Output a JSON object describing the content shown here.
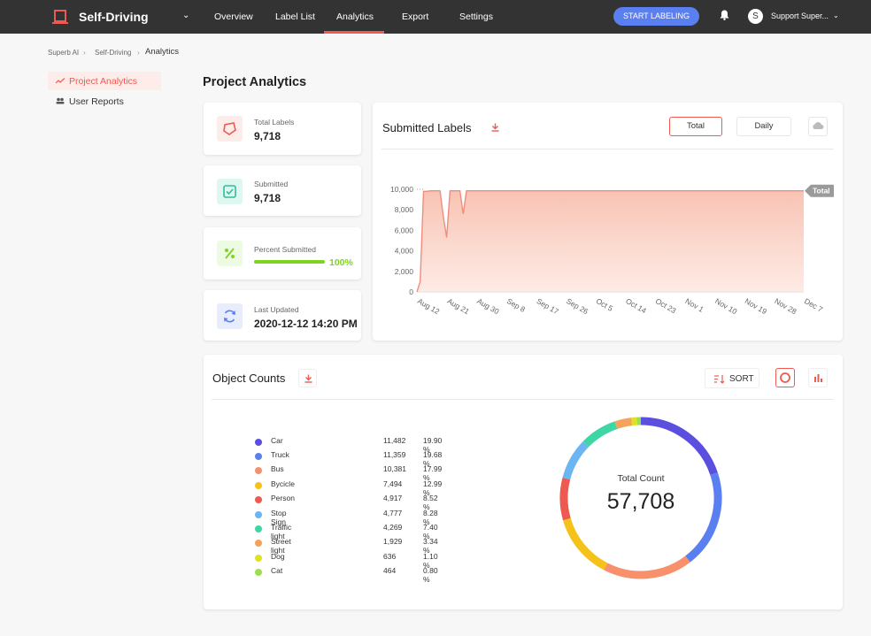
{
  "nav": {
    "project_name": "Self-Driving",
    "items": [
      "Overview",
      "Label List",
      "Analytics",
      "Export",
      "Settings"
    ],
    "start_button": "START LABELING",
    "avatar_letter": "S",
    "user_name": "Support Super..."
  },
  "breadcrumb": [
    "Superb AI",
    "Self-Driving",
    "Analytics"
  ],
  "sidebar": {
    "items": [
      "Project Analytics",
      "User Reports"
    ]
  },
  "page_title": "Project Analytics",
  "stats": [
    {
      "label": "Total Labels",
      "value": "9,718"
    },
    {
      "label": "Submitted",
      "value": "9,718"
    },
    {
      "label": "Percent Submitted",
      "value": "100%",
      "progress": 1.0
    },
    {
      "label": "Last Updated",
      "value": "2020-12-12 14:20 PM"
    }
  ],
  "submitted_labels": {
    "title": "Submitted Labels",
    "toggle": [
      "Total",
      "Daily"
    ],
    "series_tag": "Total"
  },
  "object_counts": {
    "title": "Object Counts",
    "sort_label": "SORT",
    "total_title": "Total Count",
    "total_value": "57,708",
    "rows": [
      {
        "name": "Car",
        "count": "11,482",
        "pct": "19.90 %",
        "color": "#5b4fe0"
      },
      {
        "name": "Truck",
        "count": "11,359",
        "pct": "19.68 %",
        "color": "#5a7ff0"
      },
      {
        "name": "Bus",
        "count": "10,381",
        "pct": "17.99 %",
        "color": "#f7906b"
      },
      {
        "name": "Bycicle",
        "count": "7,494",
        "pct": "12.99 %",
        "color": "#f5c21b"
      },
      {
        "name": "Person",
        "count": "4,917",
        "pct": "8.52 %",
        "color": "#ee5a4f"
      },
      {
        "name": "Stop Sign",
        "count": "4,777",
        "pct": "8.28 %",
        "color": "#6bb5f2"
      },
      {
        "name": "Traffic light",
        "count": "4,269",
        "pct": "7.40 %",
        "color": "#3ed6a4"
      },
      {
        "name": "Street light",
        "count": "1,929",
        "pct": "3.34 %",
        "color": "#f5a25a"
      },
      {
        "name": "Dog",
        "count": "636",
        "pct": "1.10 %",
        "color": "#dde324"
      },
      {
        "name": "Cat",
        "count": "464",
        "pct": "0.80 %",
        "color": "#9be04a"
      }
    ]
  },
  "chart_data": [
    {
      "type": "area",
      "title": "Submitted Labels",
      "series": [
        {
          "name": "Total"
        }
      ],
      "x_ticks": [
        "Aug 12",
        "Aug 21",
        "Aug 30",
        "Sep 8",
        "Sep 17",
        "Sep 26",
        "Oct 5",
        "Oct 14",
        "Oct 23",
        "Nov 1",
        "Nov 10",
        "Nov 19",
        "Nov 28",
        "Dec 7"
      ],
      "y_ticks": [
        "0",
        "2,000",
        "4,000",
        "6,000",
        "8,000",
        "10,000"
      ],
      "ylim": [
        0,
        10000
      ],
      "x": [
        "Aug 12",
        "Aug 13",
        "Aug 14",
        "Aug 15",
        "Aug 16",
        "Aug 18",
        "Aug 19",
        "Aug 20",
        "Aug 21",
        "Aug 22",
        "Aug 24",
        "Aug 25",
        "Aug 26",
        "Aug 27",
        "Aug 28",
        "Sep 8",
        "Dec 7"
      ],
      "y": [
        0,
        1000,
        9800,
        9800,
        9850,
        9850,
        9850,
        7300,
        5300,
        9850,
        9850,
        9850,
        7600,
        9850,
        9850,
        9850,
        9850
      ]
    },
    {
      "type": "pie",
      "title": "Total Count",
      "categories": [
        "Car",
        "Truck",
        "Bus",
        "Bycicle",
        "Person",
        "Stop Sign",
        "Traffic light",
        "Street light",
        "Dog",
        "Cat"
      ],
      "values": [
        11482,
        11359,
        10381,
        7494,
        4917,
        4777,
        4269,
        1929,
        636,
        464
      ],
      "colors": [
        "#5b4fe0",
        "#5a7ff0",
        "#f7906b",
        "#f5c21b",
        "#ee5a4f",
        "#6bb5f2",
        "#3ed6a4",
        "#f5a25a",
        "#dde324",
        "#9be04a"
      ]
    }
  ]
}
